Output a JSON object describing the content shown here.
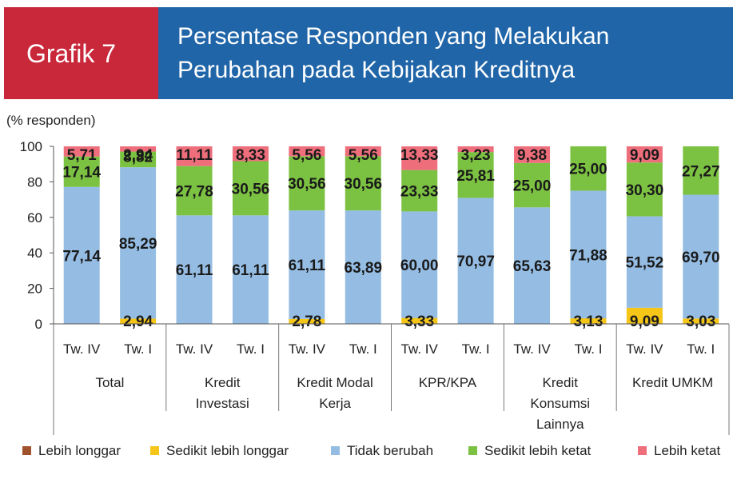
{
  "header": {
    "badge": "Grafik 7",
    "title_line1": "Persentase Responden yang Melakukan",
    "title_line2": "Perubahan pada Kebijakan Kreditnya"
  },
  "colors": {
    "lebih_longgar": "#a0522d",
    "sedikit_lebih_longgar": "#f5c518",
    "tidak_berubah": "#95bde3",
    "sedikit_lebih_ketat": "#7cc242",
    "lebih_ketat": "#ee6e7b",
    "header_red": "#c8283a",
    "header_blue": "#2065a8"
  },
  "chart_data": {
    "type": "bar",
    "stacked": true,
    "ylabel": "(% responden)",
    "ylim": [
      0,
      100
    ],
    "yticks": [
      "0",
      "20",
      "40",
      "60",
      "80",
      "100"
    ],
    "grid": false,
    "legend_position": "bottom",
    "groups": [
      {
        "label": "Total",
        "periods": [
          "Tw. IV",
          "Tw. I"
        ]
      },
      {
        "label": "Kredit Investasi",
        "periods": [
          "Tw. IV",
          "Tw. I"
        ]
      },
      {
        "label": "Kredit Modal Kerja",
        "periods": [
          "Tw. IV",
          "Tw. I"
        ]
      },
      {
        "label": "KPR/KPA",
        "periods": [
          "Tw. IV",
          "Tw. I"
        ]
      },
      {
        "label": "Kredit Konsumsi Lainnya",
        "periods": [
          "Tw. IV",
          "Tw. I"
        ]
      },
      {
        "label": "Kredit UMKM",
        "periods": [
          "Tw. IV",
          "Tw. I"
        ]
      }
    ],
    "group_label_lines": [
      [
        "Total"
      ],
      [
        "Kredit",
        "Investasi"
      ],
      [
        "Kredit Modal",
        "Kerja"
      ],
      [
        "KPR/KPA"
      ],
      [
        "Kredit",
        "Konsumsi",
        "Lainnya"
      ],
      [
        "Kredit UMKM"
      ]
    ],
    "categories": [
      "Tw. IV",
      "Tw. I",
      "Tw. IV",
      "Tw. I",
      "Tw. IV",
      "Tw. I",
      "Tw. IV",
      "Tw. I",
      "Tw. IV",
      "Tw. I",
      "Tw. IV",
      "Tw. I"
    ],
    "series": [
      {
        "name": "Lebih longgar",
        "color_key": "lebih_longgar",
        "values": [
          0,
          0,
          0,
          0,
          0,
          0,
          0,
          0,
          0,
          0,
          0,
          0
        ],
        "labels": [
          "",
          "",
          "",
          "",
          "",
          "",
          "",
          "",
          "",
          "",
          "",
          ""
        ]
      },
      {
        "name": "Sedikit lebih longgar",
        "color_key": "sedikit_lebih_longgar",
        "values": [
          0,
          2.94,
          0,
          0,
          2.78,
          0,
          3.33,
          0,
          0,
          3.13,
          9.09,
          3.03
        ],
        "labels": [
          "",
          "2,94",
          "",
          "",
          "2,78",
          "",
          "3,33",
          "",
          "",
          "3,13",
          "9,09",
          "3,03"
        ]
      },
      {
        "name": "Tidak berubah",
        "color_key": "tidak_berubah",
        "values": [
          77.14,
          85.29,
          61.11,
          61.11,
          61.11,
          63.89,
          60.0,
          70.97,
          65.63,
          71.88,
          51.52,
          69.7
        ],
        "labels": [
          "77,14",
          "85,29",
          "61,11",
          "61,11",
          "61,11",
          "63,89",
          "60,00",
          "70,97",
          "65,63",
          "71,88",
          "51,52",
          "69,70"
        ]
      },
      {
        "name": "Sedikit lebih ketat",
        "color_key": "sedikit_lebih_ketat",
        "values": [
          17.14,
          8.82,
          27.78,
          30.56,
          30.56,
          30.56,
          23.33,
          25.81,
          25.0,
          25.0,
          30.3,
          27.27
        ],
        "labels": [
          "17,14",
          "8,82",
          "27,78",
          "30,56",
          "30,56",
          "30,56",
          "23,33",
          "25,81",
          "25,00",
          "25,00",
          "30,30",
          "27,27"
        ]
      },
      {
        "name": "Lebih ketat",
        "color_key": "lebih_ketat",
        "values": [
          5.71,
          2.94,
          11.11,
          8.33,
          5.56,
          5.56,
          13.33,
          3.23,
          9.38,
          0,
          9.09,
          0
        ],
        "labels": [
          "5,71",
          "2,94",
          "11,11",
          "8,33",
          "5,56",
          "5,56",
          "13,33",
          "3,23",
          "9,38",
          "",
          "9,09",
          ""
        ]
      }
    ]
  }
}
